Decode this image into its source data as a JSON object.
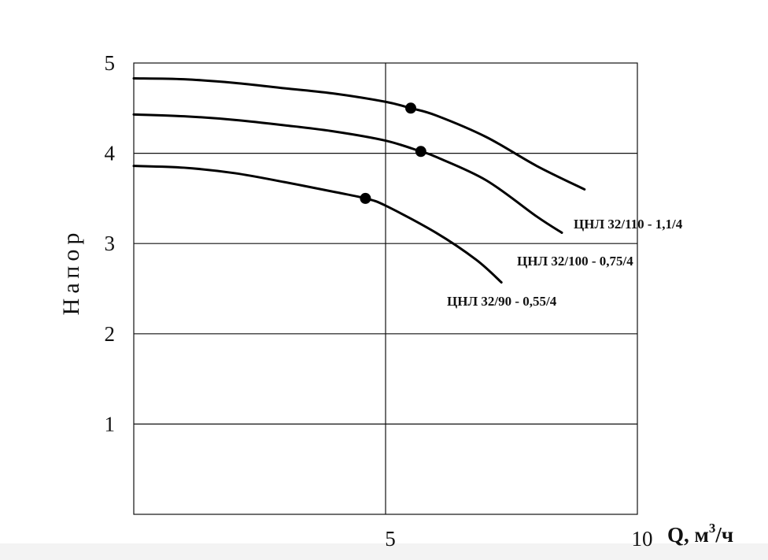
{
  "chart_data": {
    "type": "line",
    "title": "",
    "ylabel": "Напор",
    "xlabel": "Q, м",
    "xlabel_sup": "3",
    "xlabel_suffix": "/ч",
    "xlim": [
      0,
      10
    ],
    "ylim": [
      0,
      5
    ],
    "x_ticks": [
      5,
      10
    ],
    "y_ticks": [
      1,
      2,
      3,
      4,
      5
    ],
    "grid": true,
    "series": [
      {
        "name": "ЦНЛ 32/110 - 1,1/4",
        "x": [
          0,
          1,
          2,
          3,
          4,
          5,
          5.5,
          6,
          7,
          8,
          8.95
        ],
        "y": [
          4.83,
          4.82,
          4.78,
          4.72,
          4.66,
          4.57,
          4.5,
          4.42,
          4.18,
          3.86,
          3.6
        ],
        "marker": {
          "x": 5.5,
          "y": 4.5
        }
      },
      {
        "name": "ЦНЛ 32/100 - 0,75/4",
        "x": [
          0,
          1,
          2,
          3,
          4,
          5,
          5.7,
          6,
          7,
          8,
          8.5
        ],
        "y": [
          4.43,
          4.41,
          4.37,
          4.31,
          4.24,
          4.14,
          4.02,
          3.96,
          3.7,
          3.3,
          3.12
        ],
        "marker": {
          "x": 5.7,
          "y": 4.02
        }
      },
      {
        "name": "ЦНЛ 32/90 - 0,55/4",
        "x": [
          0,
          1,
          2,
          3,
          4,
          4.6,
          5,
          6,
          6.8,
          7.3
        ],
        "y": [
          3.86,
          3.84,
          3.78,
          3.68,
          3.57,
          3.5,
          3.42,
          3.12,
          2.82,
          2.57
        ],
        "marker": {
          "x": 4.6,
          "y": 3.5
        }
      }
    ]
  }
}
